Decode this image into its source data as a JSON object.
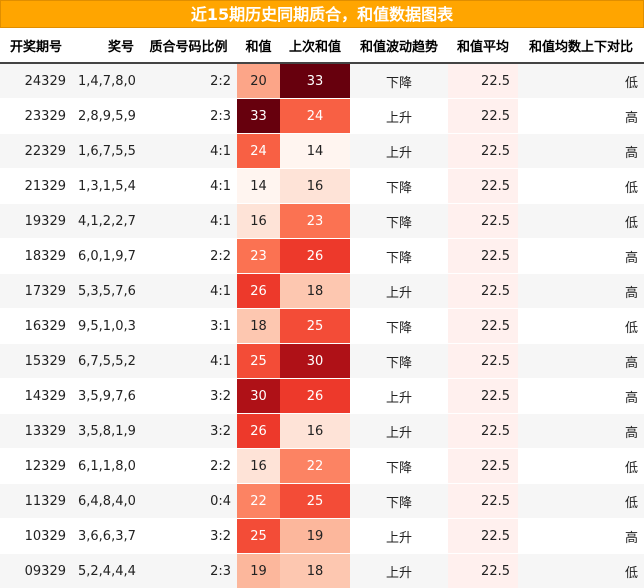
{
  "title": "近15期历史同期质合，和值数据图表",
  "headers": [
    "开奖期号",
    "奖号",
    "质合号码比例",
    "和值",
    "上次和值",
    "和值波动趋势",
    "和值平均",
    "和值均数上下对比"
  ],
  "rows": [
    {
      "issue": "24329",
      "numbers": "1,4,7,8,0",
      "ratio": "2:2",
      "sum": "20",
      "prev_sum": "33",
      "trend": "下降",
      "avg": "22.5",
      "compare": "低"
    },
    {
      "issue": "23329",
      "numbers": "2,8,9,5,9",
      "ratio": "2:3",
      "sum": "33",
      "prev_sum": "24",
      "trend": "上升",
      "avg": "22.5",
      "compare": "高"
    },
    {
      "issue": "22329",
      "numbers": "1,6,7,5,5",
      "ratio": "4:1",
      "sum": "24",
      "prev_sum": "14",
      "trend": "上升",
      "avg": "22.5",
      "compare": "高"
    },
    {
      "issue": "21329",
      "numbers": "1,3,1,5,4",
      "ratio": "4:1",
      "sum": "14",
      "prev_sum": "16",
      "trend": "下降",
      "avg": "22.5",
      "compare": "低"
    },
    {
      "issue": "19329",
      "numbers": "4,1,2,2,7",
      "ratio": "4:1",
      "sum": "16",
      "prev_sum": "23",
      "trend": "下降",
      "avg": "22.5",
      "compare": "低"
    },
    {
      "issue": "18329",
      "numbers": "6,0,1,9,7",
      "ratio": "2:2",
      "sum": "23",
      "prev_sum": "26",
      "trend": "下降",
      "avg": "22.5",
      "compare": "高"
    },
    {
      "issue": "17329",
      "numbers": "5,3,5,7,6",
      "ratio": "4:1",
      "sum": "26",
      "prev_sum": "18",
      "trend": "上升",
      "avg": "22.5",
      "compare": "高"
    },
    {
      "issue": "16329",
      "numbers": "9,5,1,0,3",
      "ratio": "3:1",
      "sum": "18",
      "prev_sum": "25",
      "trend": "下降",
      "avg": "22.5",
      "compare": "低"
    },
    {
      "issue": "15329",
      "numbers": "6,7,5,5,2",
      "ratio": "4:1",
      "sum": "25",
      "prev_sum": "30",
      "trend": "下降",
      "avg": "22.5",
      "compare": "高"
    },
    {
      "issue": "14329",
      "numbers": "3,5,9,7,6",
      "ratio": "3:2",
      "sum": "30",
      "prev_sum": "26",
      "trend": "上升",
      "avg": "22.5",
      "compare": "高"
    },
    {
      "issue": "13329",
      "numbers": "3,5,8,1,9",
      "ratio": "3:2",
      "sum": "26",
      "prev_sum": "16",
      "trend": "上升",
      "avg": "22.5",
      "compare": "高"
    },
    {
      "issue": "12329",
      "numbers": "6,1,1,8,0",
      "ratio": "2:2",
      "sum": "16",
      "prev_sum": "22",
      "trend": "下降",
      "avg": "22.5",
      "compare": "低"
    },
    {
      "issue": "11329",
      "numbers": "6,4,8,4,0",
      "ratio": "0:4",
      "sum": "22",
      "prev_sum": "25",
      "trend": "下降",
      "avg": "22.5",
      "compare": "低"
    },
    {
      "issue": "10329",
      "numbers": "3,6,6,3,7",
      "ratio": "3:2",
      "sum": "25",
      "prev_sum": "19",
      "trend": "上升",
      "avg": "22.5",
      "compare": "高"
    },
    {
      "issue": "09329",
      "numbers": "5,2,4,4,4",
      "ratio": "2:3",
      "sum": "19",
      "prev_sum": "18",
      "trend": "上升",
      "avg": "22.5",
      "compare": "低"
    }
  ],
  "colors": {
    "title_bg": "#ffa500",
    "heat_low": "#fff5f0",
    "heat_mid": "#fb6a4a",
    "heat_high": "#67000d"
  }
}
